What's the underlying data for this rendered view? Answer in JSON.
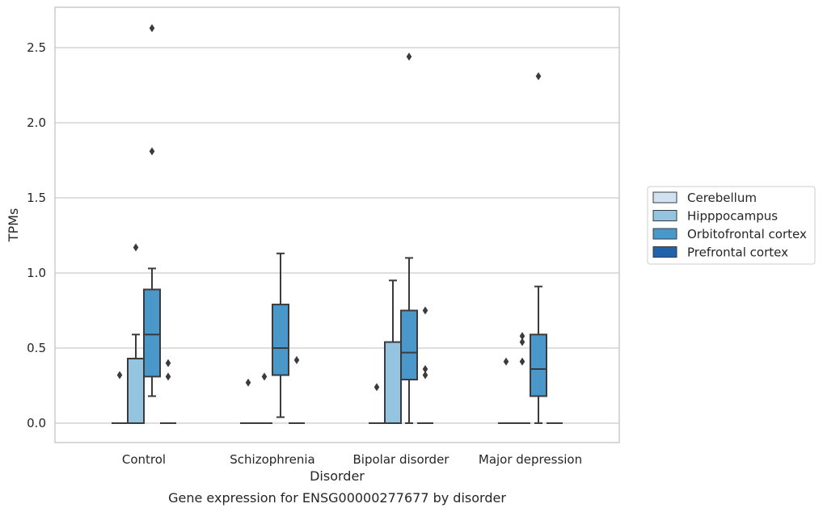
{
  "chart_data": {
    "type": "box",
    "title": "",
    "caption": "Gene expression for ENSG00000277677 by disorder",
    "xlabel": "Disorder",
    "ylabel": "TPMs",
    "ylim": [
      -0.13,
      2.77
    ],
    "yticks": [
      0.0,
      0.5,
      1.0,
      1.5,
      2.0,
      2.5
    ],
    "ytick_labels": [
      "0.0",
      "0.5",
      "1.0",
      "1.5",
      "2.0",
      "2.5"
    ],
    "grid": "horizontal",
    "legend_position": "right",
    "categories": [
      "Control",
      "Schizophrenia",
      "Bipolar disorder",
      "Major depression"
    ],
    "series": [
      {
        "name": "Cerebellum",
        "color": "#d0e1f2",
        "boxes": [
          {
            "category": "Control",
            "q1": 0,
            "median": 0,
            "q3": 0,
            "whisker_low": 0,
            "whisker_high": 0,
            "outliers": [
              0.32
            ]
          },
          {
            "category": "Schizophrenia",
            "q1": 0,
            "median": 0,
            "q3": 0,
            "whisker_low": 0,
            "whisker_high": 0,
            "outliers": [
              0.27
            ]
          },
          {
            "category": "Bipolar disorder",
            "q1": 0,
            "median": 0,
            "q3": 0,
            "whisker_low": 0,
            "whisker_high": 0,
            "outliers": [
              0.24
            ]
          },
          {
            "category": "Major depression",
            "q1": 0,
            "median": 0,
            "q3": 0,
            "whisker_low": 0,
            "whisker_high": 0,
            "outliers": [
              0.41
            ]
          }
        ]
      },
      {
        "name": "Hipppocampus",
        "color": "#94c4df",
        "boxes": [
          {
            "category": "Control",
            "q1": 0,
            "median": 0,
            "q3": 0.43,
            "whisker_low": 0,
            "whisker_high": 0.59,
            "outliers": [
              1.17
            ]
          },
          {
            "category": "Schizophrenia",
            "q1": 0,
            "median": 0,
            "q3": 0,
            "whisker_low": 0,
            "whisker_high": 0,
            "outliers": [
              0.31
            ]
          },
          {
            "category": "Bipolar disorder",
            "q1": 0,
            "median": 0,
            "q3": 0.54,
            "whisker_low": 0,
            "whisker_high": 0.95,
            "outliers": []
          },
          {
            "category": "Major depression",
            "q1": 0,
            "median": 0,
            "q3": 0,
            "whisker_low": 0,
            "whisker_high": 0,
            "outliers": [
              0.41,
              0.54,
              0.58
            ]
          }
        ]
      },
      {
        "name": "Orbitofrontal cortex",
        "color": "#4a98c9",
        "boxes": [
          {
            "category": "Control",
            "q1": 0.31,
            "median": 0.59,
            "q3": 0.89,
            "whisker_low": 0.18,
            "whisker_high": 1.03,
            "outliers": [
              1.81,
              2.63
            ]
          },
          {
            "category": "Schizophrenia",
            "q1": 0.32,
            "median": 0.5,
            "q3": 0.79,
            "whisker_low": 0.04,
            "whisker_high": 1.13,
            "outliers": []
          },
          {
            "category": "Bipolar disorder",
            "q1": 0.29,
            "median": 0.47,
            "q3": 0.75,
            "whisker_low": 0,
            "whisker_high": 1.1,
            "outliers": [
              2.44
            ]
          },
          {
            "category": "Major depression",
            "q1": 0.18,
            "median": 0.36,
            "q3": 0.59,
            "whisker_low": 0,
            "whisker_high": 0.91,
            "outliers": [
              2.31
            ]
          }
        ]
      },
      {
        "name": "Prefrontal cortex",
        "color": "#2163aa",
        "boxes": [
          {
            "category": "Control",
            "q1": 0,
            "median": 0,
            "q3": 0,
            "whisker_low": 0,
            "whisker_high": 0,
            "outliers": [
              0.31,
              0.4
            ]
          },
          {
            "category": "Schizophrenia",
            "q1": 0,
            "median": 0,
            "q3": 0,
            "whisker_low": 0,
            "whisker_high": 0,
            "outliers": [
              0.42
            ]
          },
          {
            "category": "Bipolar disorder",
            "q1": 0,
            "median": 0,
            "q3": 0,
            "whisker_low": 0,
            "whisker_high": 0,
            "outliers": [
              0.32,
              0.36,
              0.75
            ]
          },
          {
            "category": "Major depression",
            "q1": 0,
            "median": 0,
            "q3": 0,
            "whisker_low": 0,
            "whisker_high": 0,
            "outliers": []
          }
        ]
      }
    ]
  }
}
